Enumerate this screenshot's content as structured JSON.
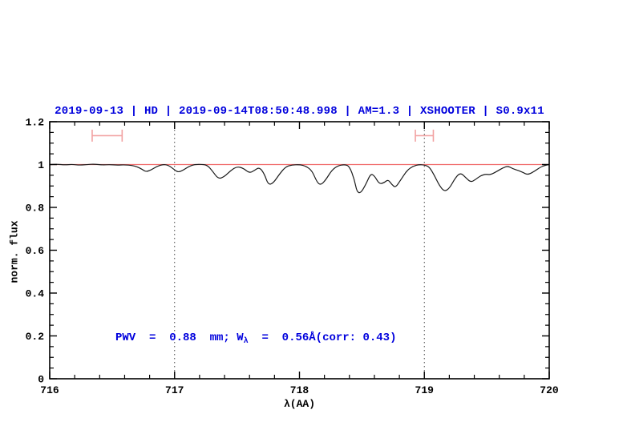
{
  "colors": {
    "header_blue": "#0000dd",
    "annotation_blue": "#0000dd",
    "continuum_red": "#f06a6a",
    "marker_salmon": "#f2a2a2",
    "spectrum_black": "#1a1a1a",
    "dotted_line_gray": "#444444",
    "frame_black": "#000000"
  },
  "chart_data": {
    "type": "line",
    "title": "2019-09-13 | HD | 2019-09-14T08:50:48.998 | AM=1.3 | XSHOOTER | S0.9x11",
    "xlabel": "λ(AA)",
    "ylabel": "norm. flux",
    "xlim": [
      716,
      720
    ],
    "ylim": [
      0,
      1.2
    ],
    "grid": false,
    "x_ticks": [
      716,
      717,
      718,
      719,
      720
    ],
    "x_tick_labels": [
      "716",
      "717",
      "718",
      "719",
      "720"
    ],
    "x_minor_step": 0.2,
    "y_ticks": [
      0,
      0.2,
      0.4,
      0.6,
      0.8,
      1,
      1.2
    ],
    "y_tick_labels": [
      "0",
      "0.2",
      "0.4",
      "0.6",
      "0.8",
      "1",
      "1.2"
    ],
    "y_minor_step": 0.05,
    "series": [
      {
        "name": "observed-spectrum",
        "color": "#1a1a1a",
        "x": [
          716.0,
          716.06,
          716.12,
          716.18,
          716.24,
          716.3,
          716.36,
          716.42,
          716.48,
          716.54,
          716.6,
          716.66,
          716.7,
          716.74,
          716.77,
          716.81,
          716.86,
          716.91,
          716.95,
          717.0,
          717.03,
          717.07,
          717.12,
          717.16,
          717.21,
          717.26,
          717.3,
          717.35,
          717.4,
          717.45,
          717.5,
          717.55,
          717.6,
          717.64,
          717.68,
          717.72,
          717.75,
          717.79,
          717.84,
          717.89,
          717.94,
          718.0,
          718.05,
          718.1,
          718.14,
          718.17,
          718.21,
          718.26,
          718.31,
          718.36,
          718.4,
          718.44,
          718.46,
          718.49,
          718.53,
          718.57,
          718.6,
          718.64,
          718.68,
          718.71,
          718.74,
          718.77,
          718.81,
          718.86,
          718.91,
          718.96,
          719.0,
          719.04,
          719.08,
          719.12,
          719.16,
          719.2,
          719.25,
          719.29,
          719.33,
          719.37,
          719.41,
          719.45,
          719.49,
          719.53,
          719.58,
          719.63,
          719.67,
          719.71,
          719.75,
          719.79,
          719.83,
          719.88,
          719.93,
          719.97,
          720.0
        ],
        "y": [
          1.0,
          1.002,
          0.998,
          1.001,
          0.997,
          1.0,
          1.002,
          0.998,
          1.0,
          0.997,
          0.999,
          0.996,
          0.99,
          0.978,
          0.966,
          0.974,
          0.992,
          1.001,
          0.997,
          0.975,
          0.964,
          0.974,
          0.993,
          1.0,
          1.001,
          0.998,
          0.972,
          0.932,
          0.944,
          0.972,
          0.991,
          0.983,
          0.96,
          0.973,
          0.988,
          0.955,
          0.905,
          0.913,
          0.956,
          0.99,
          0.998,
          1.0,
          0.993,
          0.972,
          0.918,
          0.904,
          0.928,
          0.975,
          0.995,
          1.0,
          0.993,
          0.93,
          0.872,
          0.866,
          0.905,
          0.958,
          0.948,
          0.908,
          0.916,
          0.93,
          0.906,
          0.892,
          0.928,
          0.972,
          0.993,
          1.0,
          0.998,
          0.989,
          0.95,
          0.902,
          0.874,
          0.888,
          0.94,
          0.962,
          0.94,
          0.917,
          0.93,
          0.948,
          0.955,
          0.952,
          0.968,
          0.985,
          0.993,
          0.98,
          0.973,
          0.963,
          0.952,
          0.968,
          0.988,
          0.997,
          1.0
        ]
      },
      {
        "name": "continuum-fit",
        "color": "#f06a6a",
        "x": [
          716,
          720
        ],
        "y": [
          1.0,
          1.0
        ]
      }
    ],
    "vlines": [
      {
        "x": 717,
        "style": "dotted",
        "color": "#444444"
      },
      {
        "x": 719,
        "style": "dotted",
        "color": "#444444"
      }
    ],
    "range_markers": [
      {
        "x_center": 716.46,
        "half_width": 0.12,
        "y": 1.135,
        "cap_half_height": 0.028,
        "color": "#f2a2a2"
      },
      {
        "x_center": 719.0,
        "half_width": 0.072,
        "y": 1.135,
        "cap_half_height": 0.028,
        "color": "#f2a2a2"
      }
    ],
    "annotation": {
      "prefix": "PWV  =  0.88  mm; W",
      "subscript": "λ",
      "suffix": "  =  0.56Å(corr: 0.43)",
      "x": 716.55,
      "y": 0.19
    },
    "legend": null
  }
}
